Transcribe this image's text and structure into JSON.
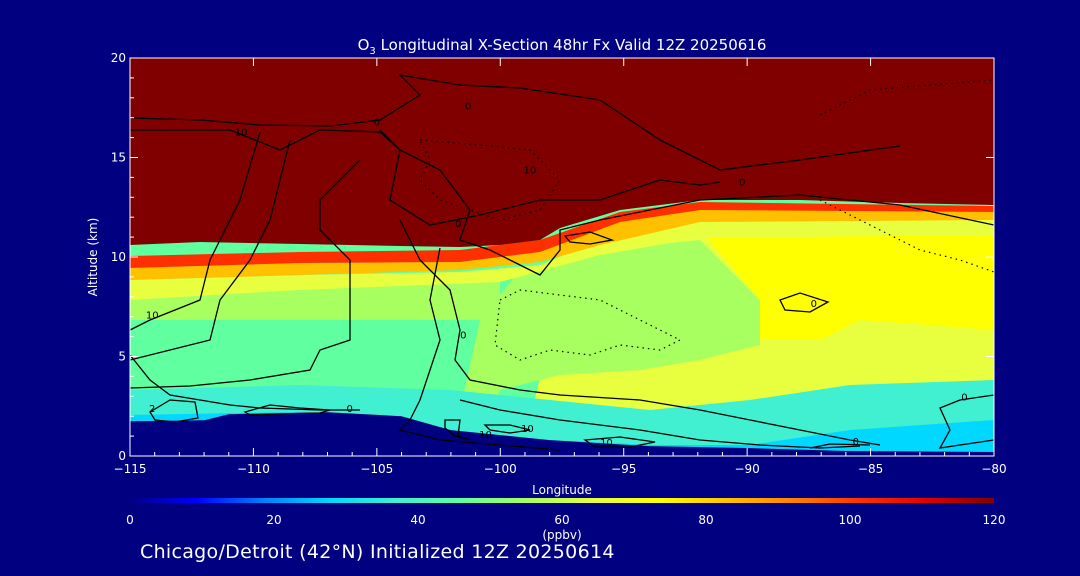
{
  "chart_data": {
    "type": "heatmap",
    "title_prefix": "O",
    "title_sub": "3",
    "title_rest": " Longitudinal X-Section 48hr  Fx Valid 12Z 20250616",
    "xlabel": "Longitude",
    "ylabel": "Altitude (km)",
    "xlim": [
      -115,
      -80
    ],
    "ylim": [
      0,
      20
    ],
    "xticks": [
      -115,
      -110,
      -105,
      -100,
      -95,
      -90,
      -85,
      -80
    ],
    "xtick_labels": [
      "−115",
      "−110",
      "−105",
      "−100",
      "−95",
      "−90",
      "−85",
      "−80"
    ],
    "yticks": [
      0,
      5,
      10,
      15,
      20
    ],
    "colorbar": {
      "label": "(ppbv)",
      "range": [
        0,
        120
      ],
      "ticks": [
        0,
        20,
        40,
        60,
        80,
        100,
        120
      ],
      "colors": [
        "#000080",
        "#0000ff",
        "#0080ff",
        "#00d8ff",
        "#40f0d0",
        "#60ffa0",
        "#a8ff60",
        "#e8ff40",
        "#ffff00",
        "#ffc000",
        "#ff8000",
        "#ff3000",
        "#e00000",
        "#800000"
      ]
    },
    "terrain_km": [
      [
        -115,
        1.75
      ],
      [
        -112,
        1.8
      ],
      [
        -111,
        2.1
      ],
      [
        -107,
        2.2
      ],
      [
        -104,
        2.0
      ],
      [
        -102,
        1.3
      ],
      [
        -98,
        0.8
      ],
      [
        -94,
        0.5
      ],
      [
        -90,
        0.4
      ],
      [
        -86,
        0.25
      ],
      [
        -80,
        0.2
      ]
    ],
    "contour_labels": [
      {
        "text": "10",
        "lon": -110.5,
        "alt": 16.1
      },
      {
        "text": "0",
        "lon": -105,
        "alt": 16.6
      },
      {
        "text": "0",
        "lon": -101.3,
        "alt": 17.4
      },
      {
        "text": "10",
        "lon": -98.8,
        "alt": 14.2
      },
      {
        "text": "0",
        "lon": -90.2,
        "alt": 13.6
      },
      {
        "text": "0",
        "lon": -101.7,
        "alt": 11.5
      },
      {
        "text": "10",
        "lon": -114.1,
        "alt": 6.9
      },
      {
        "text": "0",
        "lon": -101.5,
        "alt": 5.9
      },
      {
        "text": "0",
        "lon": -87.3,
        "alt": 7.5
      },
      {
        "text": "2",
        "lon": -114.1,
        "alt": 2.2
      },
      {
        "text": "0",
        "lon": -106.1,
        "alt": 2.2
      },
      {
        "text": "10",
        "lon": -98.9,
        "alt": 1.2
      },
      {
        "text": "10",
        "lon": -100.6,
        "alt": 0.9
      },
      {
        "text": "10",
        "lon": -95.7,
        "alt": 0.5
      },
      {
        "text": "0",
        "lon": -85.6,
        "alt": 0.55
      },
      {
        "text": "0",
        "lon": -81.2,
        "alt": 2.8
      }
    ]
  },
  "footer": "Chicago/Detroit (42°N) Initialized 12Z 20250614"
}
